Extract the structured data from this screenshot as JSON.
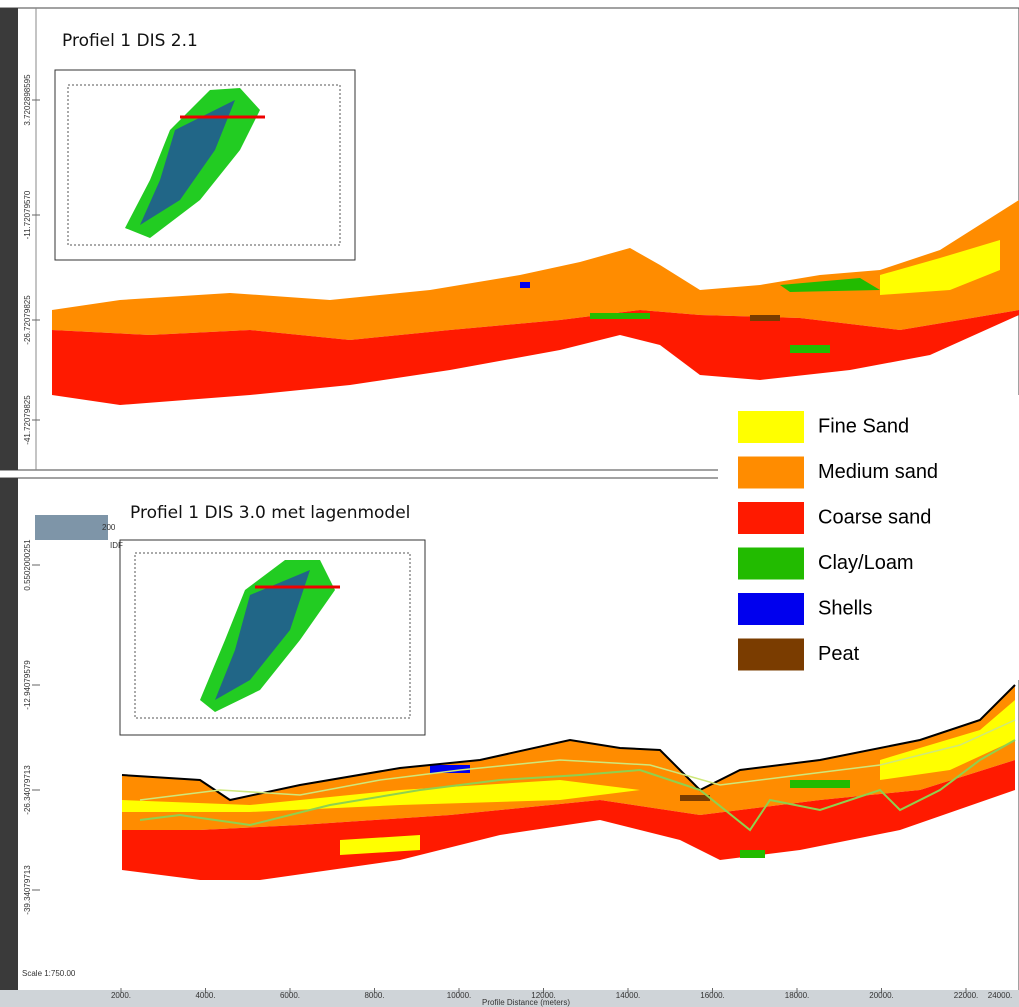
{
  "panels": [
    {
      "title": "Profiel 1 DIS 2.1",
      "y_labels": [
        "3.7202898595",
        "-11.72079570",
        "-26.72079825",
        "-41.72079825"
      ]
    },
    {
      "title": "Profiel 1 DIS 3.0 met lagenmodel",
      "y_labels": [
        "0.5502000251",
        "-12.94079579",
        "-26.34079713",
        "-39.34079713"
      ],
      "x_labels": [
        "2000.",
        "4000.",
        "6000.",
        "8000.",
        "10000.",
        "12000.",
        "14000.",
        "16000.",
        "18000.",
        "20000.",
        "22000.",
        "24000."
      ],
      "x_axis_title": "Profile Distance (meters)",
      "scale": "Scale 1:750.00",
      "side_label": "IDF",
      "side_value": "200"
    }
  ],
  "legend": [
    {
      "label": "Fine Sand",
      "color": "#ffff00"
    },
    {
      "label": "Medium sand",
      "color": "#ff8c00"
    },
    {
      "label": "Coarse sand",
      "color": "#ff1a00"
    },
    {
      "label": "Clay/Loam",
      "color": "#22bb00"
    },
    {
      "label": "Shells",
      "color": "#0000ee"
    },
    {
      "label": "Peat",
      "color": "#7a3c00"
    }
  ]
}
